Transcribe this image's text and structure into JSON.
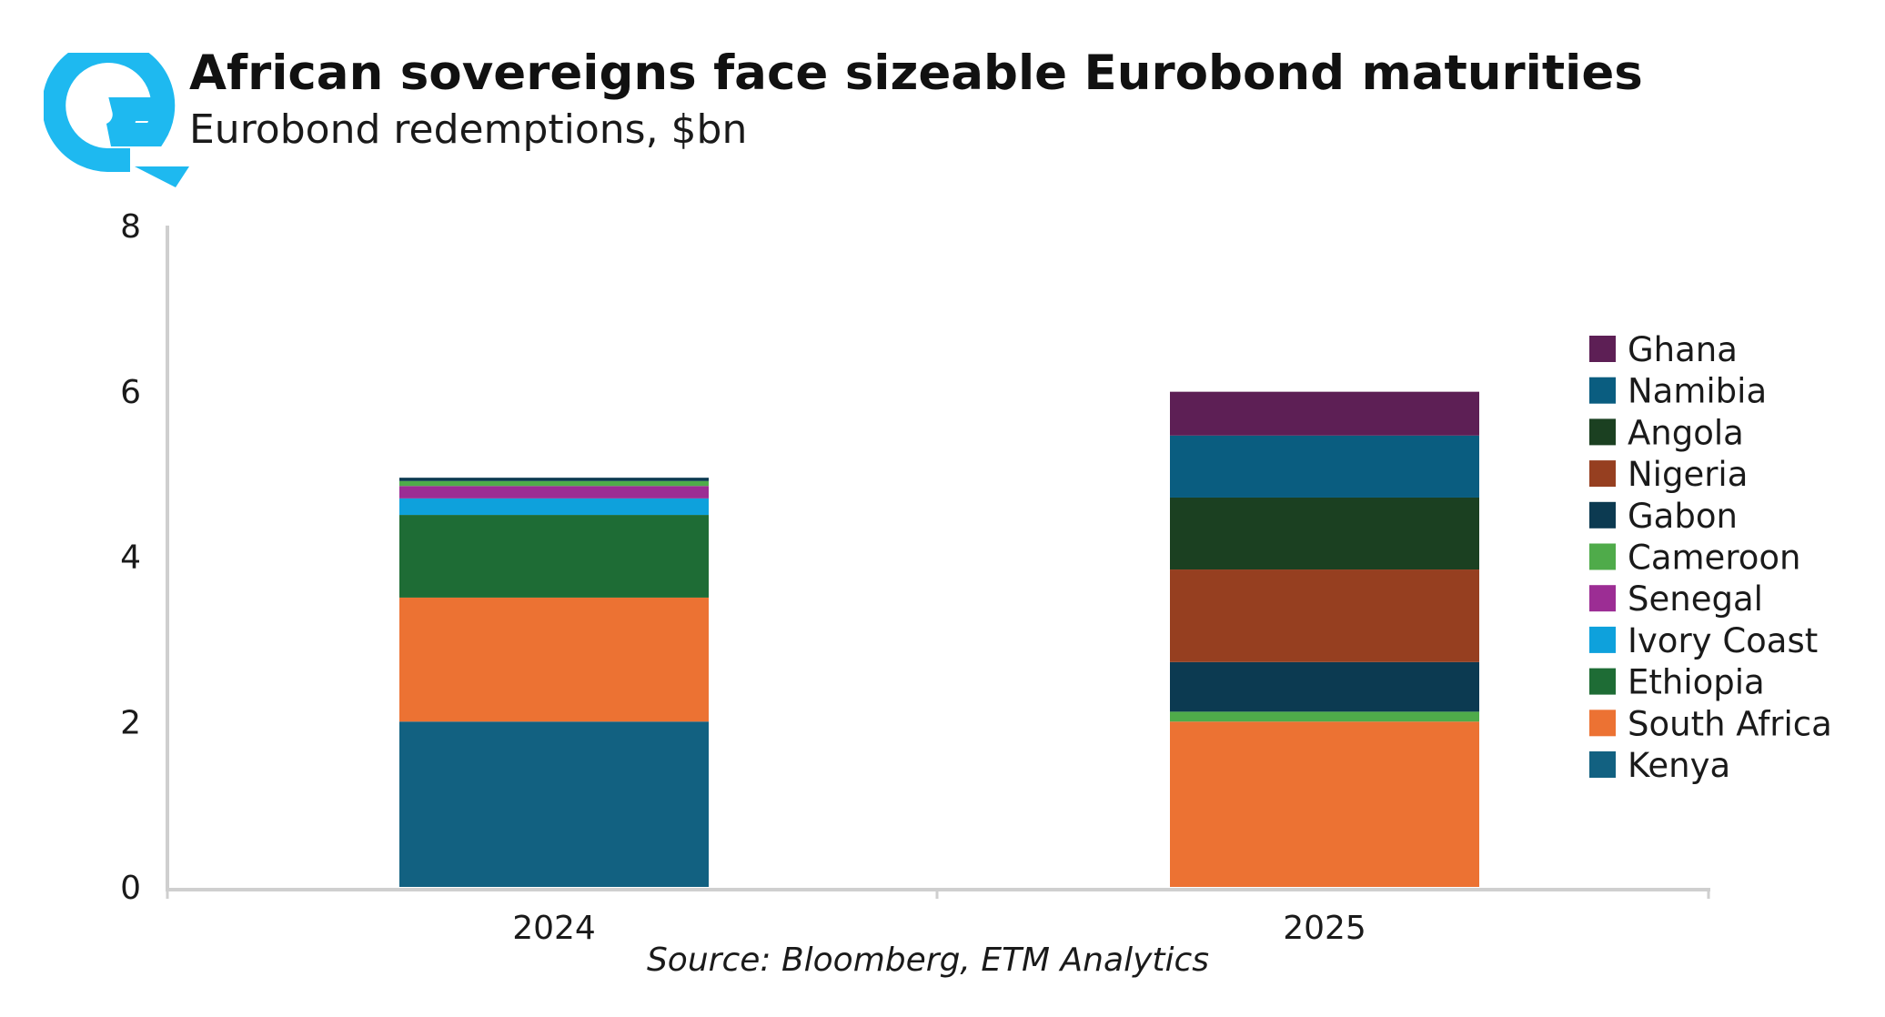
{
  "colors": {
    "logo": "#1eb9f0",
    "axis": "#cfcfcf",
    "Kenya": "#126181",
    "South Africa": "#ec7233",
    "Ethiopia": "#1e6c35",
    "Ivory Coast": "#0ea1dc",
    "Senegal": "#9c2d94",
    "Cameroon": "#4fab4a",
    "Gabon": "#0c3a51",
    "Nigeria": "#963f20",
    "Angola": "#1b4021",
    "Namibia": "#0a5d80",
    "Ghana": "#5d1f55"
  },
  "chart_data": {
    "type": "bar",
    "stacked": true,
    "title": "African sovereigns face sizeable Eurobond maturities",
    "subtitle": "Eurobond redemptions, $bn",
    "source": "Source: Bloomberg, ETM Analytics",
    "categories": [
      "2024",
      "2025"
    ],
    "ylim": [
      0,
      8
    ],
    "yticks": [
      "0",
      "2",
      "4",
      "6",
      "8"
    ],
    "legend_position": "right",
    "series": [
      {
        "name": "Kenya",
        "values": [
          2.0,
          0
        ]
      },
      {
        "name": "South Africa",
        "values": [
          1.5,
          2.0
        ]
      },
      {
        "name": "Ethiopia",
        "values": [
          1.0,
          0
        ]
      },
      {
        "name": "Ivory Coast",
        "values": [
          0.2,
          0
        ]
      },
      {
        "name": "Senegal",
        "values": [
          0.15,
          0
        ]
      },
      {
        "name": "Cameroon",
        "values": [
          0.06,
          0.12
        ]
      },
      {
        "name": "Gabon",
        "values": [
          0.04,
          0.6
        ]
      },
      {
        "name": "Nigeria",
        "values": [
          0,
          1.12
        ]
      },
      {
        "name": "Angola",
        "values": [
          0,
          0.87
        ]
      },
      {
        "name": "Namibia",
        "values": [
          0,
          0.75
        ]
      },
      {
        "name": "Ghana",
        "values": [
          0,
          0.53
        ]
      }
    ],
    "legend_order": [
      "Ghana",
      "Namibia",
      "Angola",
      "Nigeria",
      "Gabon",
      "Cameroon",
      "Senegal",
      "Ivory Coast",
      "Ethiopia",
      "South Africa",
      "Kenya"
    ]
  }
}
